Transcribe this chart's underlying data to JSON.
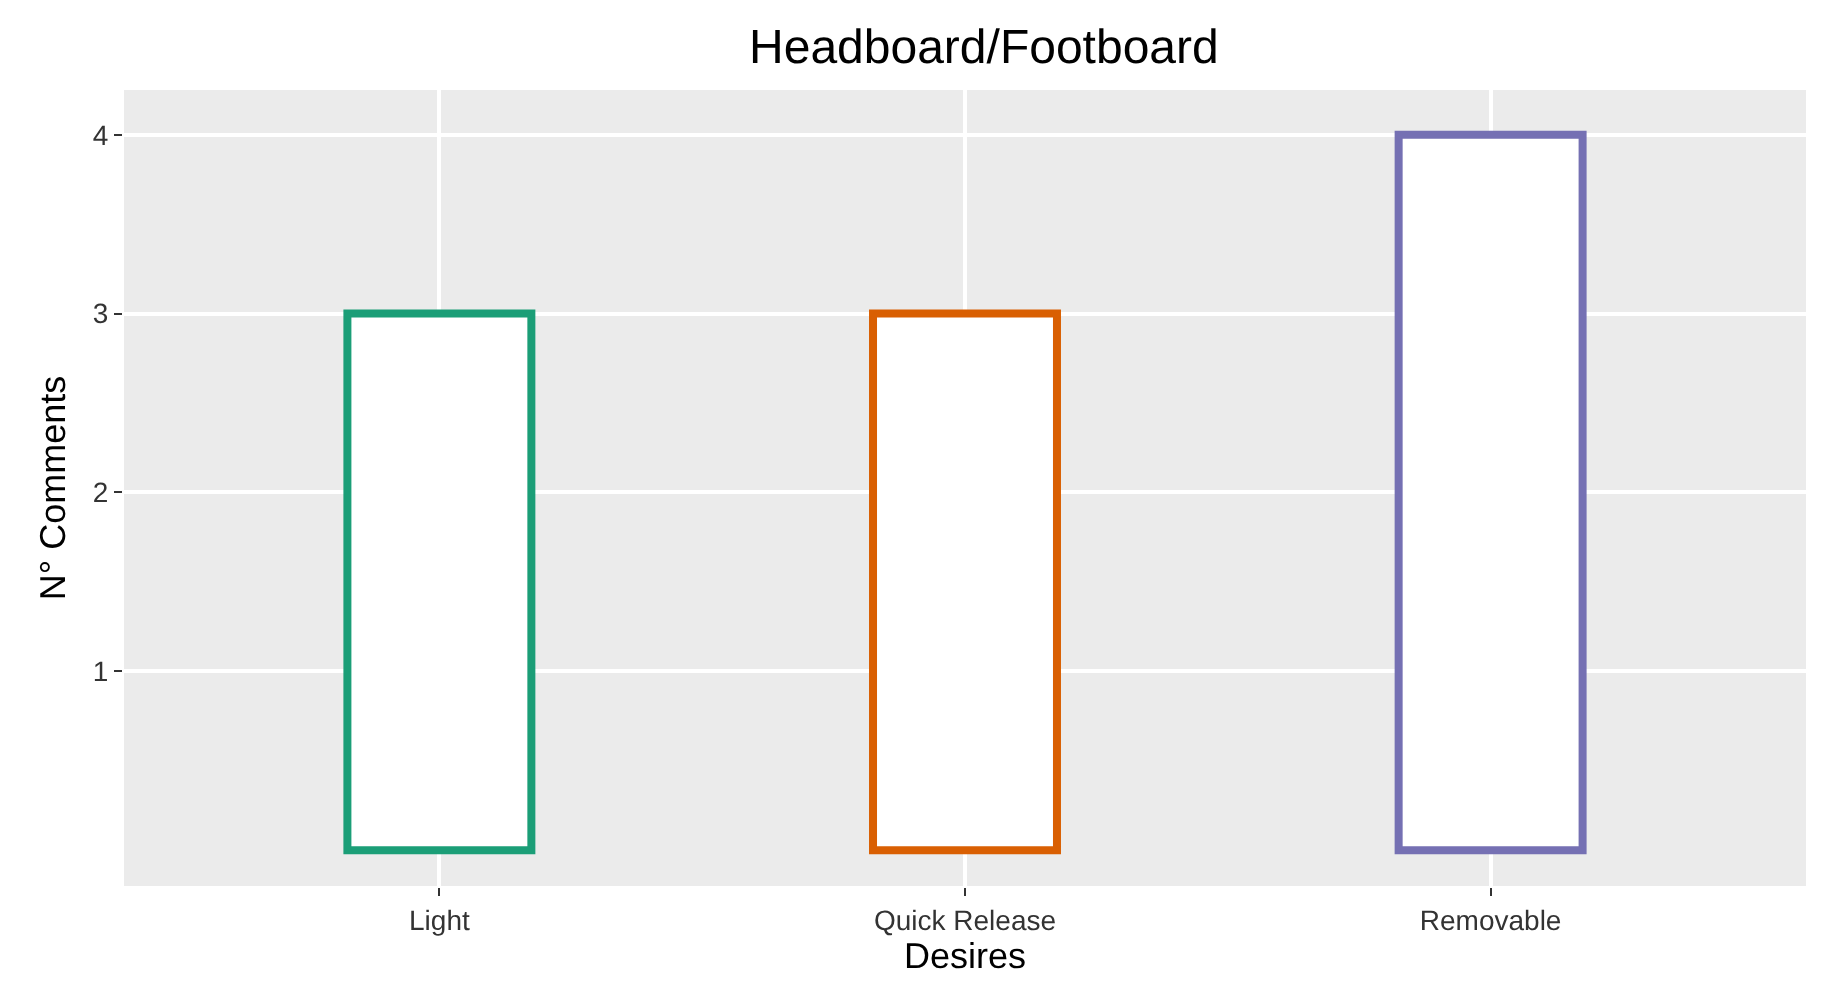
{
  "chart_data": {
    "type": "bar",
    "title": "Headboard/Footboard",
    "xlabel": "Desires",
    "ylabel": "N° Comments",
    "categories": [
      "Light",
      "Quick Release",
      "Removable"
    ],
    "values": [
      3,
      3,
      4
    ],
    "colors": [
      "#1b9e77",
      "#d95f02",
      "#7570b3"
    ],
    "ylim": [
      -0.2,
      4.25
    ],
    "yticks": [
      1,
      2,
      3,
      4
    ],
    "grid": true,
    "legend": false
  }
}
